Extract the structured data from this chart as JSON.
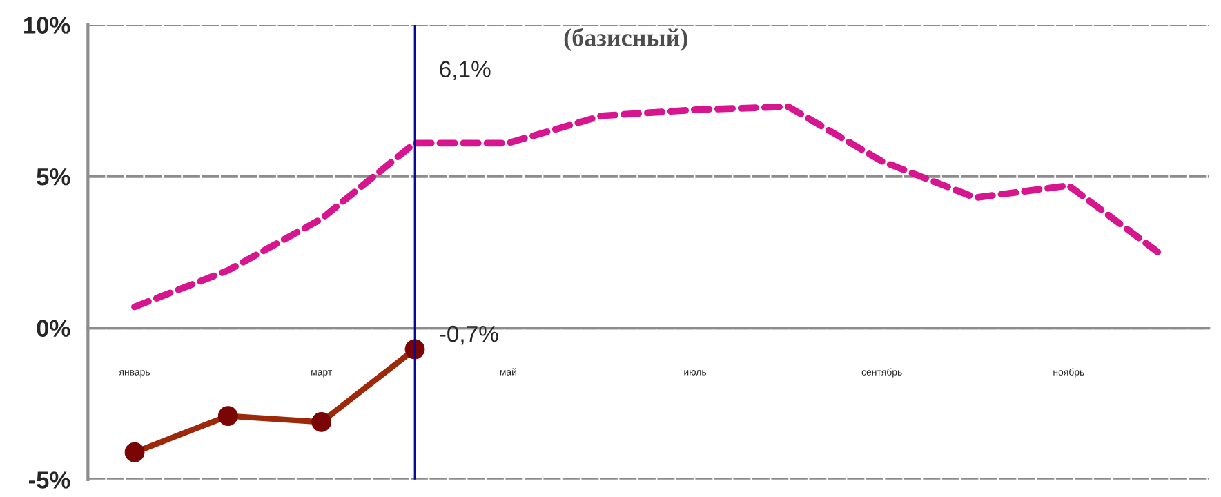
{
  "chart_data": {
    "type": "line",
    "title": "(базисный)",
    "categories": [
      "январь",
      null,
      "март",
      null,
      "май",
      null,
      "июль",
      null,
      "сентябрь",
      null,
      "ноябрь",
      null
    ],
    "series": [
      {
        "color": "#d6168f",
        "line_style": "dashed",
        "marker": "none",
        "values": [
          0.7,
          1.9,
          3.6,
          6.1,
          6.1,
          7.0,
          7.2,
          7.3,
          5.5,
          4.3,
          4.7,
          2.4
        ],
        "value_labels": [
          null,
          null,
          null,
          "6,1%",
          null,
          null,
          null,
          null,
          null,
          null,
          null,
          null
        ]
      },
      {
        "color": "#9c2a0a",
        "line_style": "solid",
        "marker": "circle",
        "values": [
          -4.1,
          -2.9,
          -3.1,
          -0.7,
          null,
          null,
          null,
          null,
          null,
          null,
          null,
          null
        ],
        "value_labels": [
          null,
          null,
          null,
          "-0,7%",
          null,
          null,
          null,
          null,
          null,
          null,
          null,
          null
        ]
      }
    ],
    "ylim": [
      -5,
      10
    ],
    "yticks": [
      {
        "value": -5,
        "label": "-5%"
      },
      {
        "value": 0,
        "label": "0%"
      },
      {
        "value": 5,
        "label": "5%"
      },
      {
        "value": 10,
        "label": "10%"
      }
    ],
    "grid": "y",
    "legend": false
  }
}
